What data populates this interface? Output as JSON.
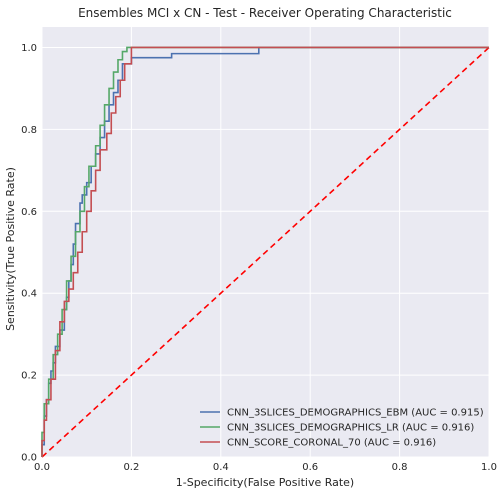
{
  "chart_data": {
    "type": "line",
    "title": "Ensembles MCI x CN - Test - Receiver Operating Characteristic",
    "xlabel": "1-Specificity(False Positive Rate)",
    "ylabel": "Sensitivity(True Positive Rate)",
    "xlim": [
      0,
      1
    ],
    "ylim": [
      0,
      1.05
    ],
    "xticks": [
      "0.0",
      "0.2",
      "0.4",
      "0.6",
      "0.8",
      "1.0"
    ],
    "yticks": [
      "0.0",
      "0.2",
      "0.4",
      "0.6",
      "0.8",
      "1.0"
    ],
    "grid": true,
    "legend_position": "lower-right",
    "background": "#eaeaf2",
    "series": [
      {
        "name": "CNN_3SLICES_DEMOGRAPHICS_EBM (AUC = 0.915)",
        "color": "#4c72b0",
        "x": [
          0,
          0,
          0.005,
          0.005,
          0.01,
          0.01,
          0.015,
          0.015,
          0.02,
          0.02,
          0.025,
          0.025,
          0.03,
          0.03,
          0.04,
          0.04,
          0.05,
          0.05,
          0.055,
          0.055,
          0.06,
          0.06,
          0.065,
          0.065,
          0.07,
          0.07,
          0.075,
          0.075,
          0.085,
          0.085,
          0.09,
          0.09,
          0.1,
          0.1,
          0.11,
          0.11,
          0.12,
          0.12,
          0.13,
          0.13,
          0.14,
          0.14,
          0.15,
          0.15,
          0.16,
          0.16,
          0.17,
          0.17,
          0.18,
          0.18,
          0.2,
          0.2,
          0.29,
          0.29,
          0.485,
          0.485,
          1.0
        ],
        "y": [
          0,
          0.03,
          0.03,
          0.1,
          0.1,
          0.14,
          0.14,
          0.18,
          0.18,
          0.21,
          0.21,
          0.23,
          0.23,
          0.27,
          0.27,
          0.31,
          0.31,
          0.36,
          0.36,
          0.39,
          0.39,
          0.43,
          0.43,
          0.47,
          0.47,
          0.52,
          0.52,
          0.57,
          0.57,
          0.62,
          0.62,
          0.64,
          0.64,
          0.67,
          0.67,
          0.71,
          0.71,
          0.74,
          0.74,
          0.78,
          0.78,
          0.82,
          0.82,
          0.86,
          0.86,
          0.89,
          0.89,
          0.92,
          0.92,
          0.96,
          0.96,
          0.975,
          0.975,
          0.985,
          0.985,
          1.0,
          1.0
        ]
      },
      {
        "name": "CNN_3SLICES_DEMOGRAPHICS_LR (AUC = 0.916)",
        "color": "#55a868",
        "x": [
          0,
          0,
          0.005,
          0.005,
          0.015,
          0.015,
          0.025,
          0.025,
          0.035,
          0.035,
          0.045,
          0.045,
          0.055,
          0.055,
          0.065,
          0.065,
          0.075,
          0.075,
          0.085,
          0.085,
          0.095,
          0.095,
          0.105,
          0.105,
          0.12,
          0.12,
          0.13,
          0.13,
          0.14,
          0.14,
          0.15,
          0.15,
          0.16,
          0.16,
          0.17,
          0.17,
          0.18,
          0.18,
          0.19,
          0.19,
          1.0
        ],
        "y": [
          0,
          0.06,
          0.06,
          0.13,
          0.13,
          0.19,
          0.19,
          0.25,
          0.25,
          0.3,
          0.3,
          0.36,
          0.36,
          0.43,
          0.43,
          0.49,
          0.49,
          0.55,
          0.55,
          0.6,
          0.6,
          0.66,
          0.66,
          0.71,
          0.71,
          0.76,
          0.76,
          0.81,
          0.81,
          0.86,
          0.86,
          0.9,
          0.9,
          0.94,
          0.94,
          0.97,
          0.97,
          0.99,
          0.99,
          1.0,
          1.0
        ]
      },
      {
        "name": "CNN_SCORE_CORONAL_70 (AUC = 0.916)",
        "color": "#c44e52",
        "x": [
          0,
          0,
          0.005,
          0.005,
          0.01,
          0.01,
          0.02,
          0.02,
          0.03,
          0.03,
          0.04,
          0.04,
          0.05,
          0.05,
          0.06,
          0.06,
          0.07,
          0.07,
          0.08,
          0.08,
          0.09,
          0.09,
          0.1,
          0.1,
          0.11,
          0.11,
          0.12,
          0.12,
          0.13,
          0.13,
          0.145,
          0.145,
          0.155,
          0.155,
          0.165,
          0.165,
          0.175,
          0.175,
          0.185,
          0.185,
          0.2,
          0.2,
          1.0
        ],
        "y": [
          0,
          0.04,
          0.04,
          0.09,
          0.09,
          0.14,
          0.14,
          0.19,
          0.19,
          0.26,
          0.26,
          0.33,
          0.33,
          0.38,
          0.38,
          0.41,
          0.41,
          0.45,
          0.45,
          0.5,
          0.5,
          0.55,
          0.55,
          0.6,
          0.6,
          0.65,
          0.65,
          0.7,
          0.7,
          0.75,
          0.75,
          0.79,
          0.79,
          0.84,
          0.84,
          0.88,
          0.88,
          0.92,
          0.92,
          0.96,
          0.96,
          1.0,
          1.0
        ]
      }
    ],
    "reference_line": {
      "x": [
        0,
        1
      ],
      "y": [
        0,
        1
      ],
      "color": "#ff0000",
      "style": "dashed"
    }
  }
}
